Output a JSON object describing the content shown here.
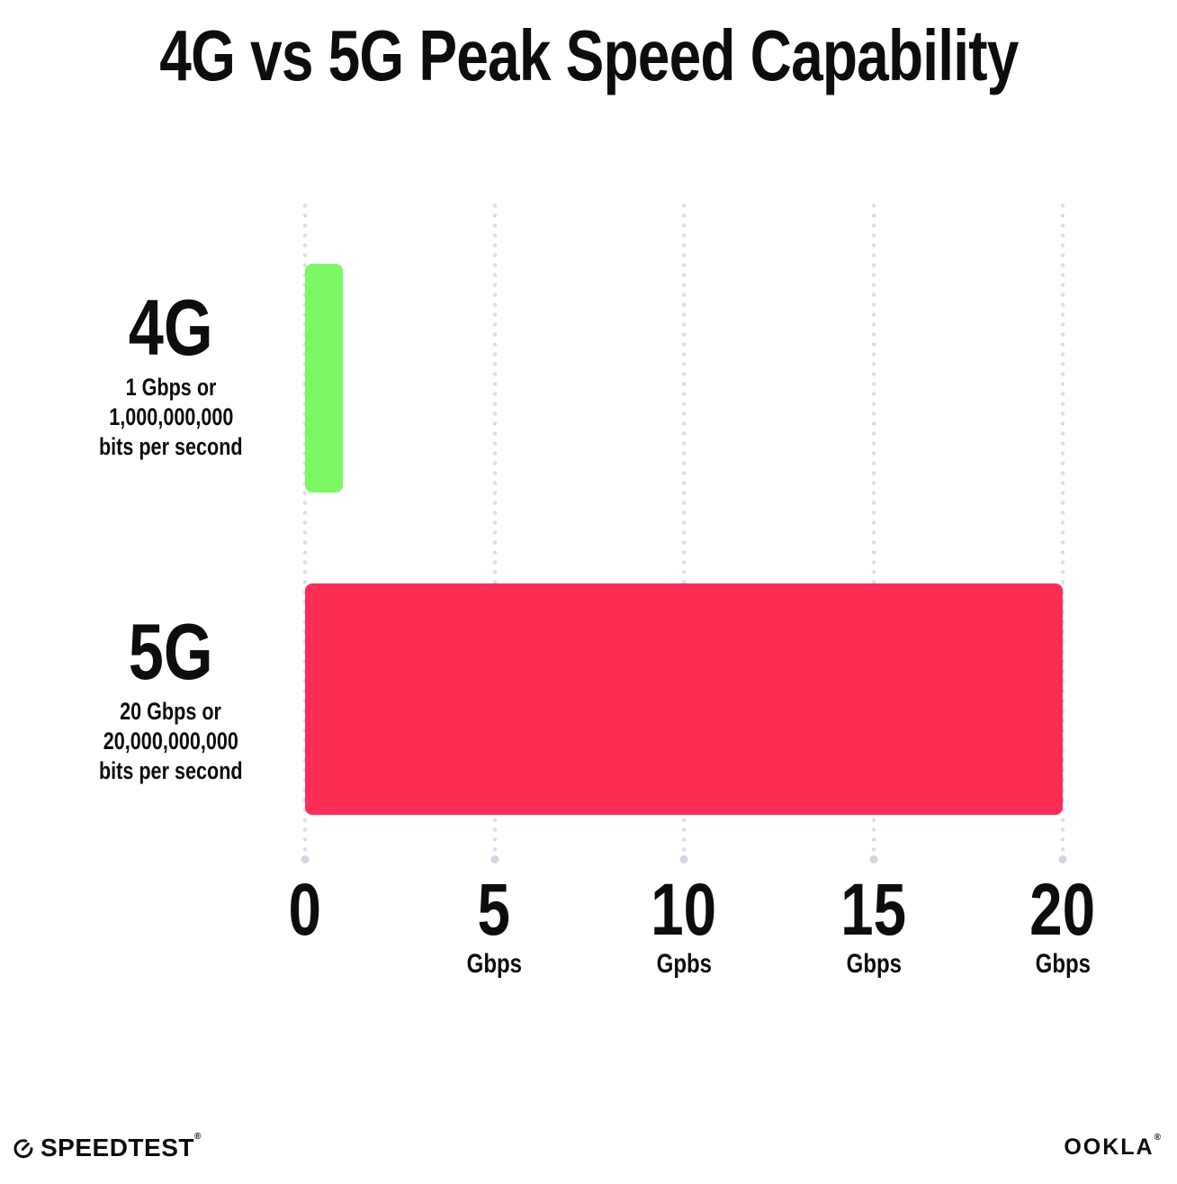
{
  "title": "4G vs 5G Peak Speed Capability",
  "chart_data": {
    "type": "bar",
    "orientation": "horizontal",
    "title": "4G vs 5G Peak Speed Capability",
    "xlabel": "Gbps",
    "xlim": [
      0,
      20
    ],
    "grid": "vertical dotted gridlines at each tick, light gray, larger dot at axis end",
    "legend": "none",
    "categories": [
      "4G",
      "5G"
    ],
    "values": [
      1,
      20
    ],
    "unit": "Gbps",
    "rows": [
      {
        "label": "4G",
        "value": 1,
        "color": "#7cf862",
        "desc": {
          "line1": "1 Gbps or",
          "line2": "1,000,000,000",
          "line3": "bits per second"
        }
      },
      {
        "label": "5G",
        "value": 20,
        "color": "#fc2e56",
        "desc": {
          "line1": "20 Gbps or",
          "line2": "20,000,000,000",
          "line3": "bits per second"
        }
      }
    ],
    "x_ticks": [
      {
        "value": "0",
        "unit": ""
      },
      {
        "value": "5",
        "unit": "Gbps"
      },
      {
        "value": "10",
        "unit": "Gpbs"
      },
      {
        "value": "15",
        "unit": "Gbps"
      },
      {
        "value": "20",
        "unit": "Gbps"
      }
    ]
  },
  "footer": {
    "speedtest_label": "SPEEDTEST",
    "speedtest_trademark": "®",
    "ookla_label": "OOKLA",
    "ookla_trademark": "®"
  },
  "colors": {
    "background": "#ffffff",
    "text": "#0d0d0d",
    "bar_4g": "#7cf862",
    "bar_5g": "#fc2e56",
    "gridline": "#dcdce8",
    "gridline_end_dot": "#d3d3e0"
  }
}
